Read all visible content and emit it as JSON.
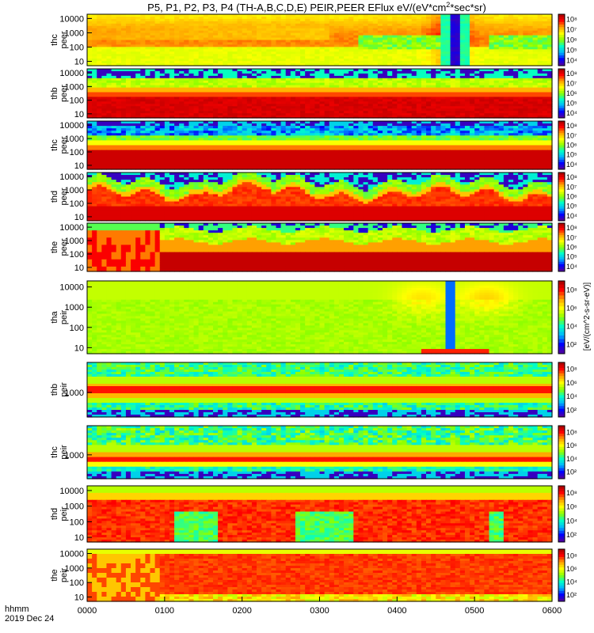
{
  "chart_data": {
    "type": "heatmap",
    "title": "P5, P1, P2, P3, P4 (TH-A,B,C,D,E) PEIR,PEER EFlux eV/(eV*cm",
    "title_sup": "2",
    "title_tail": "*sec*sr)",
    "x_label_line1": "hhmm",
    "x_label_line2": "2019 Dec 24",
    "x_ticks": [
      "0000",
      "0100",
      "0200",
      "0300",
      "0400",
      "0500",
      "0600"
    ],
    "colorbar_label": "[eV/(cm^2-s-sr-eV)]",
    "colorscale": [
      "#5a0096",
      "#0000ff",
      "#00b4ff",
      "#00ffc8",
      "#8cff00",
      "#ffff00",
      "#ffa000",
      "#ff0000",
      "#a00000"
    ],
    "panels": [
      {
        "ylabel": [
          "thc",
          "peer"
        ],
        "y_ticks": [
          "10",
          "100",
          "1000",
          "10000"
        ],
        "cbar_ticks": [
          "10⁴",
          "10⁵",
          "10⁶",
          "10⁷",
          "10⁸"
        ],
        "pattern": "p1"
      },
      {
        "ylabel": [
          "thb",
          "peer"
        ],
        "y_ticks": [
          "10",
          "100",
          "1000",
          "10000"
        ],
        "cbar_ticks": [
          "10⁴",
          "10⁵",
          "10⁶",
          "10⁷",
          "10⁸"
        ],
        "pattern": "p2"
      },
      {
        "ylabel": [
          "thc",
          "peer"
        ],
        "y_ticks": [
          "10",
          "100",
          "1000",
          "10000"
        ],
        "cbar_ticks": [
          "10⁴",
          "10⁵",
          "10⁶",
          "10⁷",
          "10⁸"
        ],
        "pattern": "p3"
      },
      {
        "ylabel": [
          "thd",
          "peer"
        ],
        "y_ticks": [
          "10",
          "100",
          "1000",
          "10000"
        ],
        "cbar_ticks": [
          "10⁴",
          "10⁵",
          "10⁶",
          "10⁷",
          "10⁸"
        ],
        "pattern": "p4"
      },
      {
        "ylabel": [
          "the",
          "peer"
        ],
        "y_ticks": [
          "10",
          "100",
          "1000",
          "10000"
        ],
        "cbar_ticks": [
          "10⁴",
          "10⁵",
          "10⁶",
          "10⁷",
          "10⁸"
        ],
        "pattern": "p5"
      },
      {
        "ylabel": [
          "tha",
          "peir"
        ],
        "y_ticks": [
          "10",
          "100",
          "1000",
          "10000"
        ],
        "cbar_ticks": [
          "10²",
          "10⁴",
          "10⁶",
          "10⁸"
        ],
        "pattern": "p6"
      },
      {
        "ylabel": [
          "thb",
          "peir"
        ],
        "y_ticks": [
          "1000"
        ],
        "cbar_ticks": [
          "10²",
          "10⁴",
          "10⁶",
          "10⁸"
        ],
        "pattern": "p7"
      },
      {
        "ylabel": [
          "thc",
          "peir"
        ],
        "y_ticks": [
          "1000"
        ],
        "cbar_ticks": [
          "10²",
          "10⁴",
          "10⁶",
          "10⁸"
        ],
        "pattern": "p8"
      },
      {
        "ylabel": [
          "thd",
          "peir"
        ],
        "y_ticks": [
          "10",
          "100",
          "1000",
          "10000"
        ],
        "cbar_ticks": [
          "10²",
          "10⁴",
          "10⁶",
          "10⁸"
        ],
        "pattern": "p9"
      },
      {
        "ylabel": [
          "the",
          "peir"
        ],
        "y_ticks": [
          "10",
          "100",
          "1000",
          "10000"
        ],
        "cbar_ticks": [
          "10²",
          "10⁴",
          "10⁶",
          "10⁸"
        ],
        "pattern": "p10"
      }
    ]
  }
}
